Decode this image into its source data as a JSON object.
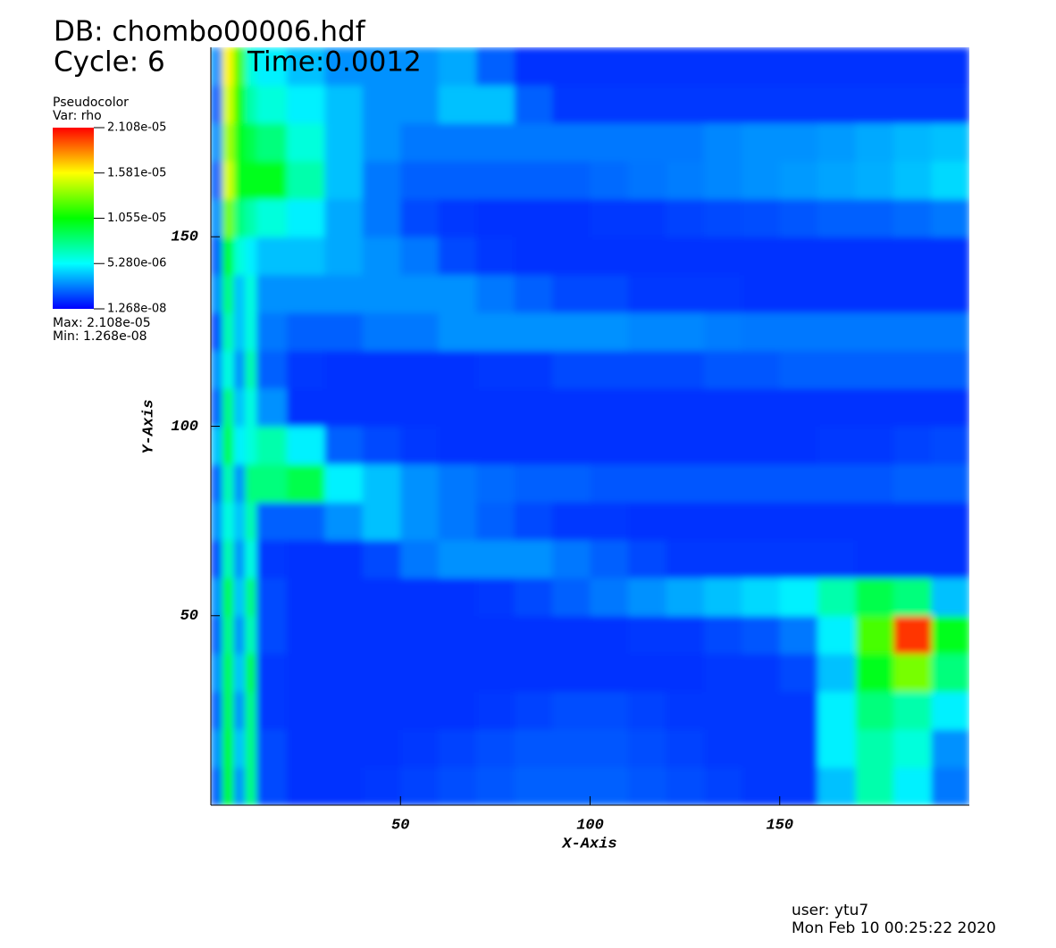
{
  "chart_data": {
    "type": "heatmap",
    "title": "DB: chombo00006.hdf",
    "cycle": "Cycle: 6",
    "time": "Time:0.0012",
    "x_label": "X-Axis",
    "y_label": "Y-Axis",
    "user": "user: ytu7",
    "date": "Mon Feb 10 00:25:22 2020",
    "xlim": [
      0,
      200
    ],
    "ylim": [
      0,
      200
    ],
    "xticks": [
      50,
      100,
      150
    ],
    "yticks": [
      50,
      100,
      150
    ],
    "xbins": [
      0,
      3,
      6,
      9,
      12,
      20,
      30,
      40,
      50,
      60,
      70,
      80,
      90,
      100,
      110,
      120,
      130,
      140,
      150,
      160,
      170,
      180,
      190,
      200
    ],
    "ybins": [
      0,
      10,
      20,
      30,
      40,
      50,
      60,
      70,
      80,
      90,
      100,
      110,
      120,
      130,
      140,
      150,
      160,
      170,
      180,
      190,
      200
    ],
    "colormap": [
      "#0000ff",
      "#00ffff",
      "#00ff00",
      "#ffff00",
      "#ff0000"
    ],
    "legend": {
      "title": "Pseudocolor",
      "variable": "Var: rho",
      "clim": [
        1.268e-08,
        2.108e-05
      ],
      "ticks": [
        {
          "value": 2.108e-05,
          "label": "2.108e-05"
        },
        {
          "value": 1.581e-05,
          "label": "1.581e-05"
        },
        {
          "value": 1.055e-05,
          "label": "1.055e-05"
        },
        {
          "value": 5.28e-06,
          "label": "5.280e-06"
        },
        {
          "value": 1.268e-08,
          "label": "1.268e-08"
        }
      ],
      "max": "Max: 2.108e-05",
      "min": "Min:  1.268e-08"
    },
    "values": [
      [
        2e-06,
        1e-05,
        3e-06,
        8e-06,
        1.5e-06,
        1e-06,
        1e-06,
        1.2e-06,
        1.4e-06,
        1.6e-06,
        1.8e-06,
        2e-06,
        2e-06,
        2e-06,
        1.8e-06,
        1.6e-06,
        1.4e-06,
        1.2e-06,
        1.2e-06,
        4e-06,
        7e-06,
        5e-06,
        2.5e-06
      ],
      [
        3e-06,
        1e-05,
        4e-06,
        8e-06,
        1.5e-06,
        1e-06,
        1e-06,
        1e-06,
        1.2e-06,
        1.4e-06,
        1.6e-06,
        1.8e-06,
        1.8e-06,
        1.8e-06,
        1.6e-06,
        1.4e-06,
        1.2e-06,
        1.2e-06,
        1.2e-06,
        5e-06,
        7e-06,
        6e-06,
        3e-06
      ],
      [
        2e-06,
        9e-06,
        3e-06,
        8e-06,
        1.2e-06,
        1e-06,
        1e-06,
        1e-06,
        1e-06,
        1e-06,
        1.2e-06,
        1.4e-06,
        1.6e-06,
        1.6e-06,
        1.4e-06,
        1.2e-06,
        1.2e-06,
        1.2e-06,
        1.2e-06,
        5e-06,
        8e-06,
        7e-06,
        5e-06
      ],
      [
        3e-06,
        9e-06,
        4e-06,
        9e-06,
        1.2e-06,
        1e-06,
        1e-06,
        1e-06,
        1e-06,
        1e-06,
        1e-06,
        1e-06,
        1e-06,
        1e-06,
        1e-06,
        1e-06,
        1.2e-06,
        1.2e-06,
        1.5e-06,
        4e-06,
        1e-05,
        1.3e-05,
        8e-06
      ],
      [
        2e-06,
        8e-06,
        3e-06,
        7e-06,
        1.5e-06,
        1e-06,
        1e-06,
        1e-06,
        1e-06,
        1e-06,
        1e-06,
        1e-06,
        1e-06,
        1e-06,
        1.2e-06,
        1.2e-06,
        1.5e-06,
        1.8e-06,
        2.5e-06,
        5e-06,
        1.2e-05,
        2e-05,
        1e-05
      ],
      [
        3e-06,
        9e-06,
        4e-06,
        8e-06,
        1.5e-06,
        1e-06,
        1e-06,
        1e-06,
        1e-06,
        1e-06,
        1.2e-06,
        1.5e-06,
        2e-06,
        2.5e-06,
        3e-06,
        3.5e-06,
        4e-06,
        4.5e-06,
        5e-06,
        7e-06,
        9e-06,
        8e-06,
        4e-06
      ],
      [
        1.5e-06,
        7e-06,
        3e-06,
        6e-06,
        1.2e-06,
        1e-06,
        1e-06,
        1.5e-06,
        2.5e-06,
        3e-06,
        3e-06,
        3e-06,
        2.5e-06,
        2e-06,
        1.5e-06,
        1.2e-06,
        1.2e-06,
        1.2e-06,
        1.2e-06,
        1.2e-06,
        1e-06,
        1e-06,
        1e-06
      ],
      [
        3e-06,
        6e-06,
        4e-06,
        7e-06,
        2e-06,
        2e-06,
        3e-06,
        4e-06,
        3e-06,
        2.5e-06,
        2e-06,
        1.5e-06,
        1.2e-06,
        1.2e-06,
        1e-06,
        1e-06,
        1e-06,
        1e-06,
        1e-06,
        1e-06,
        1e-06,
        1e-06,
        1e-06
      ],
      [
        2e-06,
        7e-06,
        3e-06,
        8e-06,
        8e-06,
        9e-06,
        5e-06,
        4e-06,
        3e-06,
        2.5e-06,
        2.2e-06,
        2e-06,
        2e-06,
        1.8e-06,
        1.8e-06,
        1.8e-06,
        1.8e-06,
        1.8e-06,
        1.8e-06,
        1.8e-06,
        1.8e-06,
        2e-06,
        2e-06
      ],
      [
        4e-06,
        9e-06,
        5e-06,
        6e-06,
        7e-06,
        5e-06,
        2e-06,
        1.5e-06,
        1.2e-06,
        1e-06,
        1e-06,
        1e-06,
        1e-06,
        1e-06,
        1e-06,
        1e-06,
        1e-06,
        1e-06,
        1e-06,
        1.2e-06,
        1.2e-06,
        1.4e-06,
        1.5e-06
      ],
      [
        2e-06,
        8e-06,
        4e-06,
        6e-06,
        3e-06,
        1e-06,
        1e-06,
        1e-06,
        1e-06,
        1e-06,
        1e-06,
        1e-06,
        1e-06,
        1e-06,
        1e-06,
        1e-06,
        1e-06,
        1e-06,
        1e-06,
        1e-06,
        1e-06,
        1e-06,
        1e-06
      ],
      [
        3e-06,
        6e-06,
        3e-06,
        7e-06,
        2e-06,
        1.2e-06,
        1e-06,
        1e-06,
        1e-06,
        1e-06,
        1.2e-06,
        1.2e-06,
        1.5e-06,
        1.5e-06,
        1.5e-06,
        1.5e-06,
        1.8e-06,
        1.8e-06,
        2e-06,
        2e-06,
        2e-06,
        2e-06,
        2e-06
      ],
      [
        1.5e-06,
        7e-06,
        4e-06,
        6e-06,
        2.5e-06,
        2e-06,
        2e-06,
        2.5e-06,
        2.5e-06,
        3e-06,
        3e-06,
        3e-06,
        3e-06,
        3e-06,
        2.8e-06,
        2.8e-06,
        2.6e-06,
        2.5e-06,
        2.5e-06,
        2.5e-06,
        2.5e-06,
        2.5e-06,
        2.5e-06
      ],
      [
        3e-06,
        8e-06,
        4e-06,
        6e-06,
        3e-06,
        3e-06,
        3e-06,
        3e-06,
        3e-06,
        3e-06,
        2.5e-06,
        2e-06,
        1.5e-06,
        1.5e-06,
        1.2e-06,
        1.2e-06,
        1.2e-06,
        1e-06,
        1e-06,
        1e-06,
        1e-06,
        1e-06,
        1e-06
      ],
      [
        2e-06,
        1e-05,
        6e-06,
        5e-06,
        4e-06,
        4e-06,
        3.5e-06,
        3e-06,
        2.5e-06,
        1.5e-06,
        1.2e-06,
        1e-06,
        1e-06,
        1e-06,
        1e-06,
        1e-06,
        1e-06,
        1e-06,
        1e-06,
        1e-06,
        1e-06,
        1e-06,
        1e-06
      ],
      [
        3e-06,
        1.3e-05,
        8e-06,
        7e-06,
        6e-06,
        5e-06,
        3.5e-06,
        2.5e-06,
        1.5e-06,
        1.2e-06,
        1e-06,
        1e-06,
        1e-06,
        1.2e-06,
        1.2e-06,
        1.4e-06,
        1.5e-06,
        1.6e-06,
        1.8e-06,
        2e-06,
        2e-06,
        2.2e-06,
        2.5e-06
      ],
      [
        2e-06,
        1.5e-05,
        1e-05,
        1e-05,
        1e-05,
        7e-06,
        4e-06,
        2.5e-06,
        2e-06,
        2e-06,
        2e-06,
        2e-06,
        2e-06,
        2.2e-06,
        2.4e-06,
        2.6e-06,
        2.8e-06,
        3e-06,
        3.2e-06,
        3.4e-06,
        3.6e-06,
        4e-06,
        4.5e-06
      ],
      [
        3e-06,
        1.4e-05,
        1e-05,
        9e-06,
        8e-06,
        6e-06,
        4e-06,
        3e-06,
        2.5e-06,
        2.5e-06,
        2.5e-06,
        2.5e-06,
        2.5e-06,
        2.5e-06,
        2.5e-06,
        2.5e-06,
        2.8e-06,
        3e-06,
        3e-06,
        3.2e-06,
        3.5e-06,
        3.8e-06,
        4e-06
      ],
      [
        2e-06,
        1.5e-05,
        1.1e-05,
        7e-06,
        6e-06,
        5e-06,
        4e-06,
        3e-06,
        3e-06,
        4e-06,
        4e-06,
        2e-06,
        1.2e-06,
        1.2e-06,
        1.2e-06,
        1.2e-06,
        1.2e-06,
        1.2e-06,
        1.2e-06,
        1.2e-06,
        1.2e-06,
        1.2e-06,
        1.2e-06
      ],
      [
        3e-06,
        1.6e-05,
        1.2e-05,
        6e-06,
        5e-06,
        4e-06,
        3e-06,
        3e-06,
        3e-06,
        3.5e-06,
        2e-06,
        1e-06,
        1e-06,
        1e-06,
        1e-06,
        1e-06,
        1e-06,
        1e-06,
        1e-06,
        1e-06,
        1e-06,
        1e-06,
        1e-06
      ]
    ]
  }
}
